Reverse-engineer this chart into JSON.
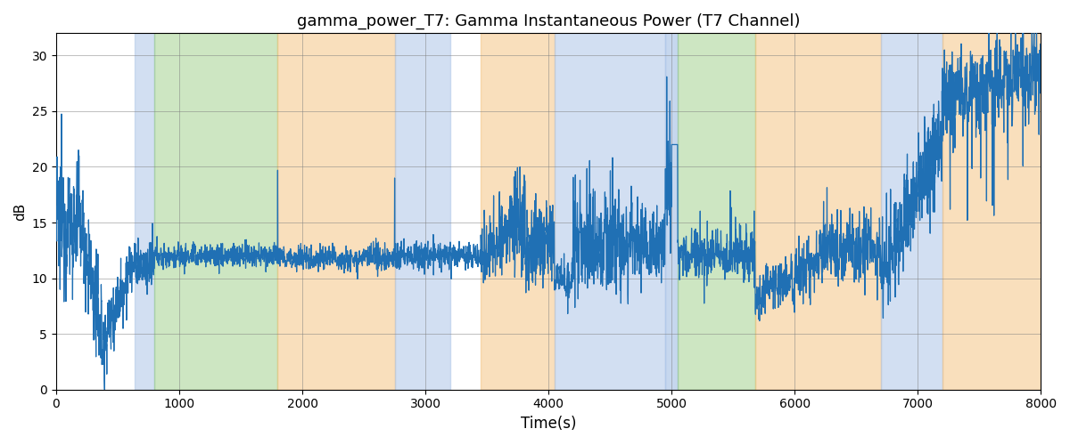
{
  "title": "gamma_power_T7: Gamma Instantaneous Power (T7 Channel)",
  "xlabel": "Time(s)",
  "ylabel": "dB",
  "xlim": [
    0,
    8000
  ],
  "ylim": [
    0,
    32
  ],
  "yticks": [
    0,
    5,
    10,
    15,
    20,
    25,
    30
  ],
  "xticks": [
    0,
    1000,
    2000,
    3000,
    4000,
    5000,
    6000,
    7000,
    8000
  ],
  "line_color": "#2070b4",
  "line_width": 0.9,
  "bg_color": "#ffffff",
  "bands": [
    {
      "xmin": 640,
      "xmax": 800,
      "color": "#aec6e8",
      "alpha": 0.55
    },
    {
      "xmin": 800,
      "xmax": 1800,
      "color": "#90c978",
      "alpha": 0.45
    },
    {
      "xmin": 1800,
      "xmax": 2750,
      "color": "#f4c07a",
      "alpha": 0.5
    },
    {
      "xmin": 2750,
      "xmax": 3200,
      "color": "#aec6e8",
      "alpha": 0.55
    },
    {
      "xmin": 3450,
      "xmax": 4050,
      "color": "#f4c07a",
      "alpha": 0.5
    },
    {
      "xmin": 4050,
      "xmax": 4950,
      "color": "#aec6e8",
      "alpha": 0.55
    },
    {
      "xmin": 4950,
      "xmax": 5050,
      "color": "#aec6e8",
      "alpha": 0.7
    },
    {
      "xmin": 5050,
      "xmax": 5680,
      "color": "#90c978",
      "alpha": 0.45
    },
    {
      "xmin": 5680,
      "xmax": 6700,
      "color": "#f4c07a",
      "alpha": 0.5
    },
    {
      "xmin": 6700,
      "xmax": 7200,
      "color": "#aec6e8",
      "alpha": 0.55
    },
    {
      "xmin": 7200,
      "xmax": 8100,
      "color": "#f4c07a",
      "alpha": 0.5
    }
  ],
  "seed": 12345
}
